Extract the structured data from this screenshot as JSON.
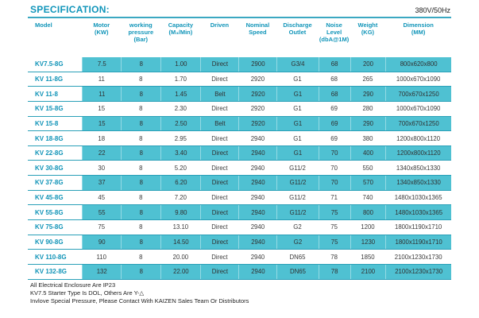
{
  "page": {
    "title": "SPECIFICATION:",
    "voltage": "380V/50Hz"
  },
  "colors": {
    "accent_teal": "#1195b9",
    "row_highlight": "#4fc1d2",
    "row_border": "#2aa0b8"
  },
  "table": {
    "columns": [
      {
        "key": "model",
        "lines": [
          "Model"
        ]
      },
      {
        "key": "motor",
        "lines": [
          "Motor",
          "(KW)"
        ]
      },
      {
        "key": "pressure",
        "lines": [
          "working",
          "pressure",
          "(Bar)"
        ]
      },
      {
        "key": "capacity",
        "lines": [
          "Capacity",
          "(M₃/Min)"
        ]
      },
      {
        "key": "driven",
        "lines": [
          "Driven"
        ]
      },
      {
        "key": "speed",
        "lines": [
          "Nominal",
          "Speed"
        ]
      },
      {
        "key": "discharge",
        "lines": [
          "Discharge",
          "Outlet"
        ]
      },
      {
        "key": "noise",
        "lines": [
          "Noise",
          "Level",
          "(dbA@1M)"
        ]
      },
      {
        "key": "weight",
        "lines": [
          "Weight",
          "(KG)"
        ]
      },
      {
        "key": "dimension",
        "lines": [
          "Dimension",
          "(MM)"
        ]
      }
    ],
    "rows": [
      {
        "model": "KV7.5-8G",
        "motor": "7.5",
        "pressure": "8",
        "capacity": "1.00",
        "driven": "Direct",
        "speed": "2900",
        "discharge": "G3/4",
        "noise": "68",
        "weight": "200",
        "dimension": "800x620x800",
        "highlight": true
      },
      {
        "model": "KV 11-8G",
        "motor": "11",
        "pressure": "8",
        "capacity": "1.70",
        "driven": "Direct",
        "speed": "2920",
        "discharge": "G1",
        "noise": "68",
        "weight": "265",
        "dimension": "1000x670x1090",
        "highlight": false
      },
      {
        "model": "KV 11-8",
        "motor": "11",
        "pressure": "8",
        "capacity": "1.45",
        "driven": "Belt",
        "speed": "2920",
        "discharge": "G1",
        "noise": "68",
        "weight": "290",
        "dimension": "700x670x1250",
        "highlight": true
      },
      {
        "model": "KV 15-8G",
        "motor": "15",
        "pressure": "8",
        "capacity": "2.30",
        "driven": "Direct",
        "speed": "2920",
        "discharge": "G1",
        "noise": "69",
        "weight": "280",
        "dimension": "1000x670x1090",
        "highlight": false
      },
      {
        "model": "KV 15-8",
        "motor": "15",
        "pressure": "8",
        "capacity": "2.50",
        "driven": "Belt",
        "speed": "2920",
        "discharge": "G1",
        "noise": "69",
        "weight": "290",
        "dimension": "700x670x1250",
        "highlight": true
      },
      {
        "model": "KV 18-8G",
        "motor": "18",
        "pressure": "8",
        "capacity": "2.95",
        "driven": "Direct",
        "speed": "2940",
        "discharge": "G1",
        "noise": "69",
        "weight": "380",
        "dimension": "1200x800x1120",
        "highlight": false
      },
      {
        "model": "KV 22-8G",
        "motor": "22",
        "pressure": "8",
        "capacity": "3.40",
        "driven": "Direct",
        "speed": "2940",
        "discharge": "G1",
        "noise": "70",
        "weight": "400",
        "dimension": "1200x800x1120",
        "highlight": true
      },
      {
        "model": "KV 30-8G",
        "motor": "30",
        "pressure": "8",
        "capacity": "5.20",
        "driven": "Direct",
        "speed": "2940",
        "discharge": "G11/2",
        "noise": "70",
        "weight": "550",
        "dimension": "1340x850x1330",
        "highlight": false
      },
      {
        "model": "KV 37-8G",
        "motor": "37",
        "pressure": "8",
        "capacity": "6.20",
        "driven": "Direct",
        "speed": "2940",
        "discharge": "G11/2",
        "noise": "70",
        "weight": "570",
        "dimension": "1340x850x1330",
        "highlight": true
      },
      {
        "model": "KV 45-8G",
        "motor": "45",
        "pressure": "8",
        "capacity": "7.20",
        "driven": "Direct",
        "speed": "2940",
        "discharge": "G11/2",
        "noise": "71",
        "weight": "740",
        "dimension": "1480x1030x1365",
        "highlight": false
      },
      {
        "model": "KV 55-8G",
        "motor": "55",
        "pressure": "8",
        "capacity": "9.80",
        "driven": "Direct",
        "speed": "2940",
        "discharge": "G11/2",
        "noise": "75",
        "weight": "800",
        "dimension": "1480x1030x1365",
        "highlight": true
      },
      {
        "model": "KV 75-8G",
        "motor": "75",
        "pressure": "8",
        "capacity": "13.10",
        "driven": "Direct",
        "speed": "2940",
        "discharge": "G2",
        "noise": "75",
        "weight": "1200",
        "dimension": "1800x1190x1710",
        "highlight": false
      },
      {
        "model": "KV 90-8G",
        "motor": "90",
        "pressure": "8",
        "capacity": "14.50",
        "driven": "Direct",
        "speed": "2940",
        "discharge": "G2",
        "noise": "75",
        "weight": "1230",
        "dimension": "1800x1190x1710",
        "highlight": true
      },
      {
        "model": "KV 110-8G",
        "motor": "110",
        "pressure": "8",
        "capacity": "20.00",
        "driven": "Direct",
        "speed": "2940",
        "discharge": "DN65",
        "noise": "78",
        "weight": "1850",
        "dimension": "2100x1230x1730",
        "highlight": false
      },
      {
        "model": "KV 132-8G",
        "motor": "132",
        "pressure": "8",
        "capacity": "22.00",
        "driven": "Direct",
        "speed": "2940",
        "discharge": "DN65",
        "noise": "78",
        "weight": "2100",
        "dimension": "2100x1230x1730",
        "highlight": true
      }
    ]
  },
  "footnotes": [
    "All Electrical Enclosure Are IP23",
    "KV7.5 Starter Type Is DOL, Others Are Y-△",
    "Invlove Special Pressure, Please Contact With KAIZEN Sales Team Or Distributors"
  ]
}
